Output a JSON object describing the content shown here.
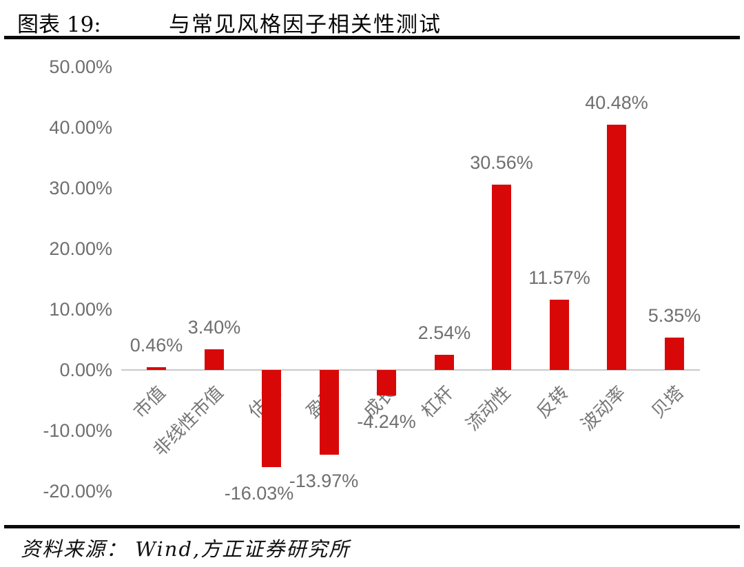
{
  "header": {
    "figure_label": "图表 19:",
    "title": "与常见风格因子相关性测试"
  },
  "footer": {
    "source_label": "资料来源：",
    "source_text": "Wind,方正证券研究所"
  },
  "chart_data": {
    "type": "bar",
    "title": "与常见风格因子相关性测试",
    "categories": [
      "市值",
      "非线性市值",
      "估值",
      "盈利",
      "成长",
      "杠杆",
      "流动性",
      "反转",
      "波动率",
      "贝塔"
    ],
    "values": [
      0.46,
      3.4,
      -16.03,
      -13.97,
      -4.24,
      2.54,
      30.56,
      11.57,
      40.48,
      5.35
    ],
    "value_labels": [
      "0.46%",
      "3.40%",
      "-16.03%",
      "-13.97%",
      "-4.24%",
      "2.54%",
      "30.56%",
      "11.57%",
      "40.48%",
      "5.35%"
    ],
    "y_ticks": [
      "50.00%",
      "40.00%",
      "30.00%",
      "20.00%",
      "10.00%",
      "0.00%",
      "-10.00%",
      "-20.00%"
    ],
    "y_tick_values": [
      50,
      40,
      30,
      20,
      10,
      0,
      -10,
      -20
    ],
    "ylim": [
      -20,
      50
    ],
    "xlabel": "",
    "ylabel": "",
    "grid": false,
    "legend_position": "none",
    "bar_color": "#d90808",
    "axis_line_color": "#c9c9c9",
    "label_color": "#6f6f6f",
    "label_dx": [
      0,
      0,
      -18,
      -8,
      0,
      0,
      0,
      0,
      0,
      0
    ]
  }
}
